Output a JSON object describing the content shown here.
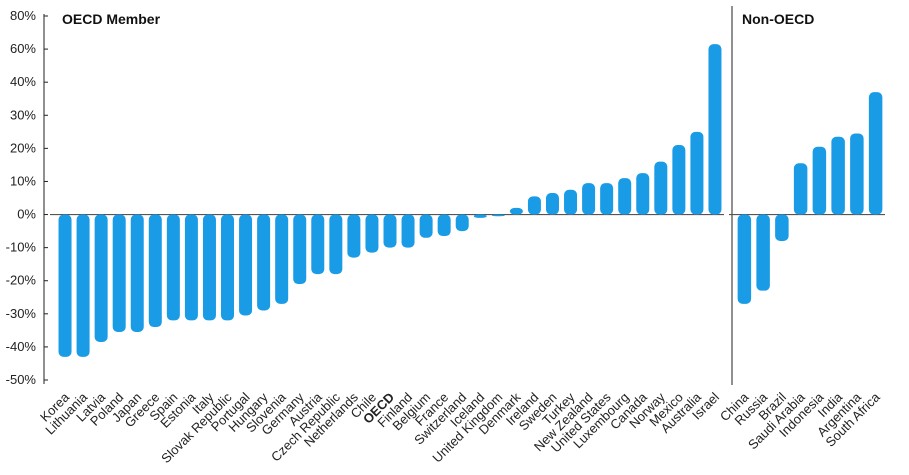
{
  "chart_data": {
    "type": "bar",
    "color": "#1a9be6",
    "ylim": [
      -50,
      80
    ],
    "yticks": [
      "80%",
      "60%",
      "40%",
      "30%",
      "20%",
      "10%",
      "0%",
      "-10%",
      "-20%",
      "-30%",
      "-40%",
      "-50%"
    ],
    "ytick_values": [
      80,
      60,
      40,
      30,
      20,
      10,
      0,
      -10,
      -20,
      -30,
      -40,
      -50
    ],
    "grid": false,
    "panels": [
      {
        "title": "OECD Member",
        "categories": [
          "Korea",
          "Lithuania",
          "Latvia",
          "Poland",
          "Japan",
          "Greece",
          "Spain",
          "Estonia",
          "Italy",
          "Slovak Republic",
          "Portugal",
          "Hungary",
          "Slovenia",
          "Germany",
          "Austria",
          "Czech Republic",
          "Netherlands",
          "Chile",
          "OECD",
          "Finland",
          "Belgium",
          "France",
          "Switzerland",
          "Iceland",
          "United Kingdom",
          "Denmark",
          "Ireland",
          "Sweden",
          "Turkey",
          "New Zealand",
          "United States",
          "Luxembourg",
          "Canada",
          "Norway",
          "Mexico",
          "Australia",
          "Israel"
        ],
        "values": [
          -43,
          -43,
          -38.5,
          -35.5,
          -35.5,
          -34,
          -32,
          -32,
          -32,
          -32,
          -30.5,
          -29,
          -27,
          -21,
          -18,
          -18,
          -13,
          -11.5,
          -10,
          -10,
          -7,
          -6.5,
          -5,
          -1,
          -0.5,
          2,
          5.5,
          6.5,
          7.5,
          9.5,
          9.5,
          11,
          12.5,
          16,
          21,
          25,
          63
        ],
        "bold_category": "OECD"
      },
      {
        "title": "Non-OECD",
        "categories": [
          "China",
          "Russia",
          "Brazil",
          "Saudi Arabia",
          "Indonesia",
          "India",
          "Argentina",
          "South Africa"
        ],
        "values": [
          -27,
          -23,
          -8,
          15.5,
          20.5,
          23.5,
          24.5,
          37
        ]
      }
    ]
  }
}
